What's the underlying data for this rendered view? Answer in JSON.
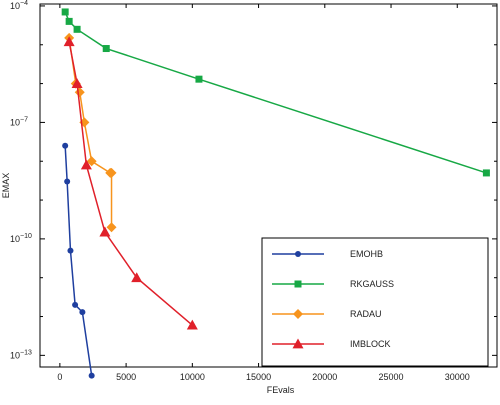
{
  "chart_data": {
    "type": "line",
    "xlabel": "FEvals",
    "ylabel": "EMAX",
    "xlim": [
      -1500,
      33000
    ],
    "xscale": "linear",
    "yscale": "log",
    "ylim_log10": [
      -13.3,
      -3.95
    ],
    "grid": false,
    "legend_position": "bottom-right",
    "x_ticks": [
      {
        "value": 0,
        "label": "0"
      },
      {
        "value": 5000,
        "label": "5000"
      },
      {
        "value": 10000,
        "label": "10000"
      },
      {
        "value": 15000,
        "label": "15000"
      },
      {
        "value": 20000,
        "label": "20000"
      },
      {
        "value": 25000,
        "label": "25000"
      },
      {
        "value": 30000,
        "label": "30000"
      }
    ],
    "y_ticks": [
      {
        "exp": -4,
        "base": "10",
        "sup": "−4"
      },
      {
        "exp": -7,
        "base": "10",
        "sup": "−7"
      },
      {
        "exp": -10,
        "base": "10",
        "sup": "−10"
      },
      {
        "exp": -13,
        "base": "10",
        "sup": "−13"
      }
    ],
    "series": [
      {
        "name": "EMOHB",
        "color": "#1f3f9f",
        "marker": "circle",
        "x": [
          400,
          550,
          800,
          1150,
          1700,
          2400
        ],
        "y": [
          2.5e-08,
          3e-09,
          5e-11,
          2e-12,
          1.3e-12,
          3e-14
        ]
      },
      {
        "name": "RKGAUSS",
        "color": "#17a845",
        "marker": "square",
        "x": [
          400,
          700,
          1300,
          3500,
          10500,
          32200
        ],
        "y": [
          7e-05,
          4e-05,
          2.5e-05,
          8e-06,
          1.3e-06,
          5e-09
        ]
      },
      {
        "name": "RADAU",
        "color": "#f7941d",
        "marker": "diamond",
        "x": [
          700,
          1200,
          1500,
          1850,
          2400,
          3800,
          3900,
          3900
        ],
        "y": [
          1.5e-05,
          1e-06,
          6e-07,
          1e-07,
          1e-08,
          5e-09,
          5e-09,
          2e-10
        ]
      },
      {
        "name": "IMBLOCK",
        "color": "#e0202a",
        "marker": "triangle",
        "x": [
          700,
          1300,
          2000,
          3400,
          5800,
          10000
        ],
        "y": [
          1.2e-05,
          1e-06,
          8e-09,
          1.5e-10,
          1e-11,
          6e-13
        ]
      }
    ]
  }
}
